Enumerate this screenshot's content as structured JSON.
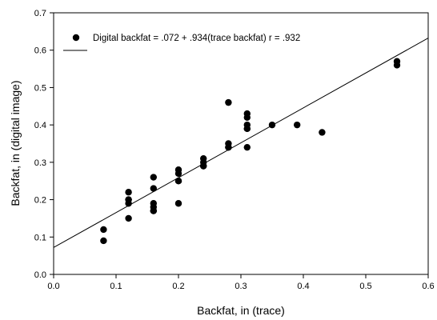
{
  "chart_data": {
    "type": "scatter",
    "xlabel": "Backfat, in (trace)",
    "ylabel": "Backfat, in (digital image)",
    "xlim": [
      0.0,
      0.6
    ],
    "ylim": [
      0.0,
      0.7
    ],
    "xticks": [
      "0.0",
      "0.1",
      "0.2",
      "0.3",
      "0.4",
      "0.5",
      "0.6"
    ],
    "yticks": [
      "0.0",
      "0.1",
      "0.2",
      "0.3",
      "0.4",
      "0.5",
      "0.6",
      "0.7"
    ],
    "xtick_values": [
      0.0,
      0.1,
      0.2,
      0.3,
      0.4,
      0.5,
      0.6
    ],
    "ytick_values": [
      0.0,
      0.1,
      0.2,
      0.3,
      0.4,
      0.5,
      0.6,
      0.7
    ],
    "grid": false,
    "legend_position": "top-left",
    "legend_label": "Digital backfat = .072 + .934(trace backfat) r = .932",
    "series": [
      {
        "name": "Digital backfat = .072 + .934(trace backfat) r = .932",
        "x": [
          0.08,
          0.08,
          0.12,
          0.12,
          0.12,
          0.12,
          0.12,
          0.16,
          0.16,
          0.16,
          0.16,
          0.16,
          0.16,
          0.2,
          0.2,
          0.2,
          0.2,
          0.2,
          0.24,
          0.24,
          0.24,
          0.24,
          0.28,
          0.28,
          0.28,
          0.28,
          0.31,
          0.31,
          0.31,
          0.31,
          0.31,
          0.31,
          0.35,
          0.39,
          0.43,
          0.55,
          0.55
        ],
        "y": [
          0.12,
          0.09,
          0.22,
          0.2,
          0.2,
          0.19,
          0.15,
          0.26,
          0.23,
          0.19,
          0.18,
          0.17,
          0.17,
          0.28,
          0.27,
          0.25,
          0.25,
          0.19,
          0.31,
          0.3,
          0.29,
          0.29,
          0.46,
          0.35,
          0.34,
          0.34,
          0.43,
          0.42,
          0.4,
          0.39,
          0.39,
          0.34,
          0.4,
          0.4,
          0.38,
          0.57,
          0.56
        ]
      }
    ],
    "regression": {
      "intercept": 0.072,
      "slope": 0.934
    }
  }
}
